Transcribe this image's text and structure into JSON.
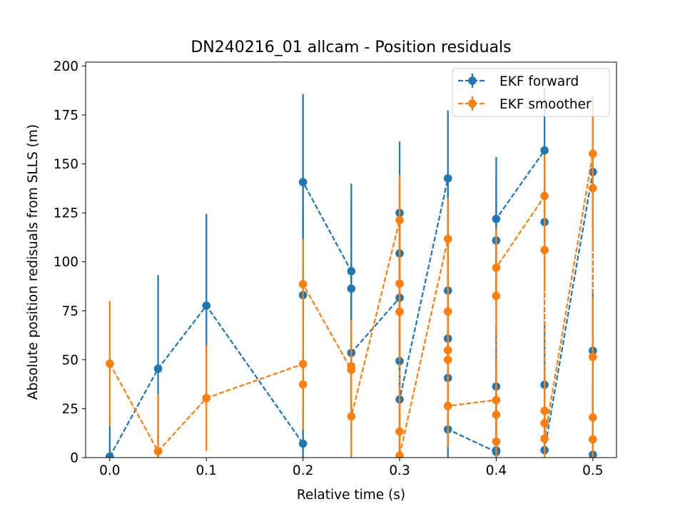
{
  "chart_data": {
    "type": "line",
    "title": "DN240216_01 allcam - Position residuals",
    "xlabel": "Relative time (s)",
    "ylabel": "Absolute position redisuals from SLLS (m)",
    "xlim": [
      -0.025,
      0.5245
    ],
    "ylim": [
      0,
      202
    ],
    "xticks": [
      0.0,
      0.1,
      0.2,
      0.3,
      0.4,
      0.5
    ],
    "xtick_labels": [
      "0.0",
      "0.1",
      "0.2",
      "0.3",
      "0.4",
      "0.5"
    ],
    "yticks": [
      0,
      25,
      50,
      75,
      100,
      125,
      150,
      175,
      200
    ],
    "ytick_labels": [
      "0",
      "25",
      "50",
      "75",
      "100",
      "125",
      "150",
      "175",
      "200"
    ],
    "grid": false,
    "legend_position": "top-right",
    "series": [
      {
        "name": "EKF forward",
        "color": "#1f77b4",
        "linestyle": "dashed",
        "marker": "circle",
        "points": [
          {
            "x": 0.0,
            "y": 0.5,
            "err": 15.7
          },
          {
            "x": 0.05,
            "y": 45.4,
            "err": 47.8
          },
          {
            "x": 0.1,
            "y": 77.6,
            "err": 46.8
          },
          {
            "x": 0.2,
            "y": 7.1,
            "err": 45
          },
          {
            "x": 0.2,
            "y": 83.0,
            "err": 45
          },
          {
            "x": 0.2,
            "y": 140.7,
            "err": 45
          },
          {
            "x": 0.25,
            "y": 95.2,
            "err": 44.7
          },
          {
            "x": 0.25,
            "y": 86.3,
            "err": 44.7
          },
          {
            "x": 0.25,
            "y": 53.5,
            "err": 44.7
          },
          {
            "x": 0.3,
            "y": 81.6,
            "err": 36.4
          },
          {
            "x": 0.3,
            "y": 104.3,
            "err": 36.4
          },
          {
            "x": 0.3,
            "y": 125.0,
            "err": 36.4
          },
          {
            "x": 0.3,
            "y": 49.3,
            "err": 36.4
          },
          {
            "x": 0.3,
            "y": 29.7,
            "err": 36.4
          },
          {
            "x": 0.35,
            "y": 142.6,
            "err": 34.7
          },
          {
            "x": 0.35,
            "y": 85.3,
            "err": 34.7
          },
          {
            "x": 0.35,
            "y": 60.8,
            "err": 34.7
          },
          {
            "x": 0.35,
            "y": 40.7,
            "err": 34.7
          },
          {
            "x": 0.35,
            "y": 14.4,
            "err": 34.7
          },
          {
            "x": 0.4,
            "y": 2.9,
            "err": 31.7
          },
          {
            "x": 0.4,
            "y": 3.7,
            "err": 31.7
          },
          {
            "x": 0.4,
            "y": 36.3,
            "err": 31.7
          },
          {
            "x": 0.4,
            "y": 110.9,
            "err": 31.7
          },
          {
            "x": 0.4,
            "y": 121.9,
            "err": 31.7
          },
          {
            "x": 0.45,
            "y": 156.9,
            "err": 31.6
          },
          {
            "x": 0.45,
            "y": 120.3,
            "err": 31.6
          },
          {
            "x": 0.45,
            "y": 37.2,
            "err": 31.6
          },
          {
            "x": 0.45,
            "y": 3.8,
            "err": 31.6
          },
          {
            "x": 0.5,
            "y": 145.9,
            "err": 30.3
          },
          {
            "x": 0.5,
            "y": 54.6,
            "err": 30.3
          },
          {
            "x": 0.5,
            "y": 1.5,
            "err": 30.3
          }
        ]
      },
      {
        "name": "EKF smoother",
        "color": "#ff7f0e",
        "linestyle": "dashed",
        "marker": "circle",
        "points": [
          {
            "x": 0.0,
            "y": 48.0,
            "err": 31.9
          },
          {
            "x": 0.05,
            "y": 3.2,
            "err": 29.4
          },
          {
            "x": 0.1,
            "y": 30.4,
            "err": 27.0
          },
          {
            "x": 0.2,
            "y": 47.8,
            "err": 23
          },
          {
            "x": 0.2,
            "y": 37.4,
            "err": 23
          },
          {
            "x": 0.2,
            "y": 88.6,
            "err": 23
          },
          {
            "x": 0.25,
            "y": 44.9,
            "err": 23.8
          },
          {
            "x": 0.25,
            "y": 46.6,
            "err": 23.8
          },
          {
            "x": 0.25,
            "y": 21.0,
            "err": 23.8
          },
          {
            "x": 0.3,
            "y": 121.3,
            "err": 23.1
          },
          {
            "x": 0.3,
            "y": 88.9,
            "err": 23.1
          },
          {
            "x": 0.3,
            "y": 74.5,
            "err": 23.1
          },
          {
            "x": 0.3,
            "y": 13.3,
            "err": 23.1
          },
          {
            "x": 0.3,
            "y": 1.0,
            "err": 23.1
          },
          {
            "x": 0.35,
            "y": 111.7,
            "err": 20.9
          },
          {
            "x": 0.35,
            "y": 74.6,
            "err": 20.9
          },
          {
            "x": 0.35,
            "y": 54.8,
            "err": 20.9
          },
          {
            "x": 0.35,
            "y": 50.0,
            "err": 20.9
          },
          {
            "x": 0.35,
            "y": 26.4,
            "err": 20.9
          },
          {
            "x": 0.4,
            "y": 29.4,
            "err": 20.3
          },
          {
            "x": 0.4,
            "y": 21.9,
            "err": 20.3
          },
          {
            "x": 0.4,
            "y": 8.2,
            "err": 20.3
          },
          {
            "x": 0.4,
            "y": 82.6,
            "err": 20.3
          },
          {
            "x": 0.4,
            "y": 97.0,
            "err": 20.3
          },
          {
            "x": 0.45,
            "y": 133.6,
            "err": 21.1
          },
          {
            "x": 0.45,
            "y": 106.0,
            "err": 21.1
          },
          {
            "x": 0.45,
            "y": 23.9,
            "err": 21.1
          },
          {
            "x": 0.45,
            "y": 17.6,
            "err": 21.1
          },
          {
            "x": 0.45,
            "y": 9.7,
            "err": 21.1
          },
          {
            "x": 0.5,
            "y": 155.2,
            "err": 29.4
          },
          {
            "x": 0.5,
            "y": 137.6,
            "err": 29.4
          },
          {
            "x": 0.5,
            "y": 51.4,
            "err": 29.4
          },
          {
            "x": 0.5,
            "y": 20.5,
            "err": 29.4
          },
          {
            "x": 0.5,
            "y": 9.3,
            "err": 29.4
          }
        ]
      }
    ]
  }
}
